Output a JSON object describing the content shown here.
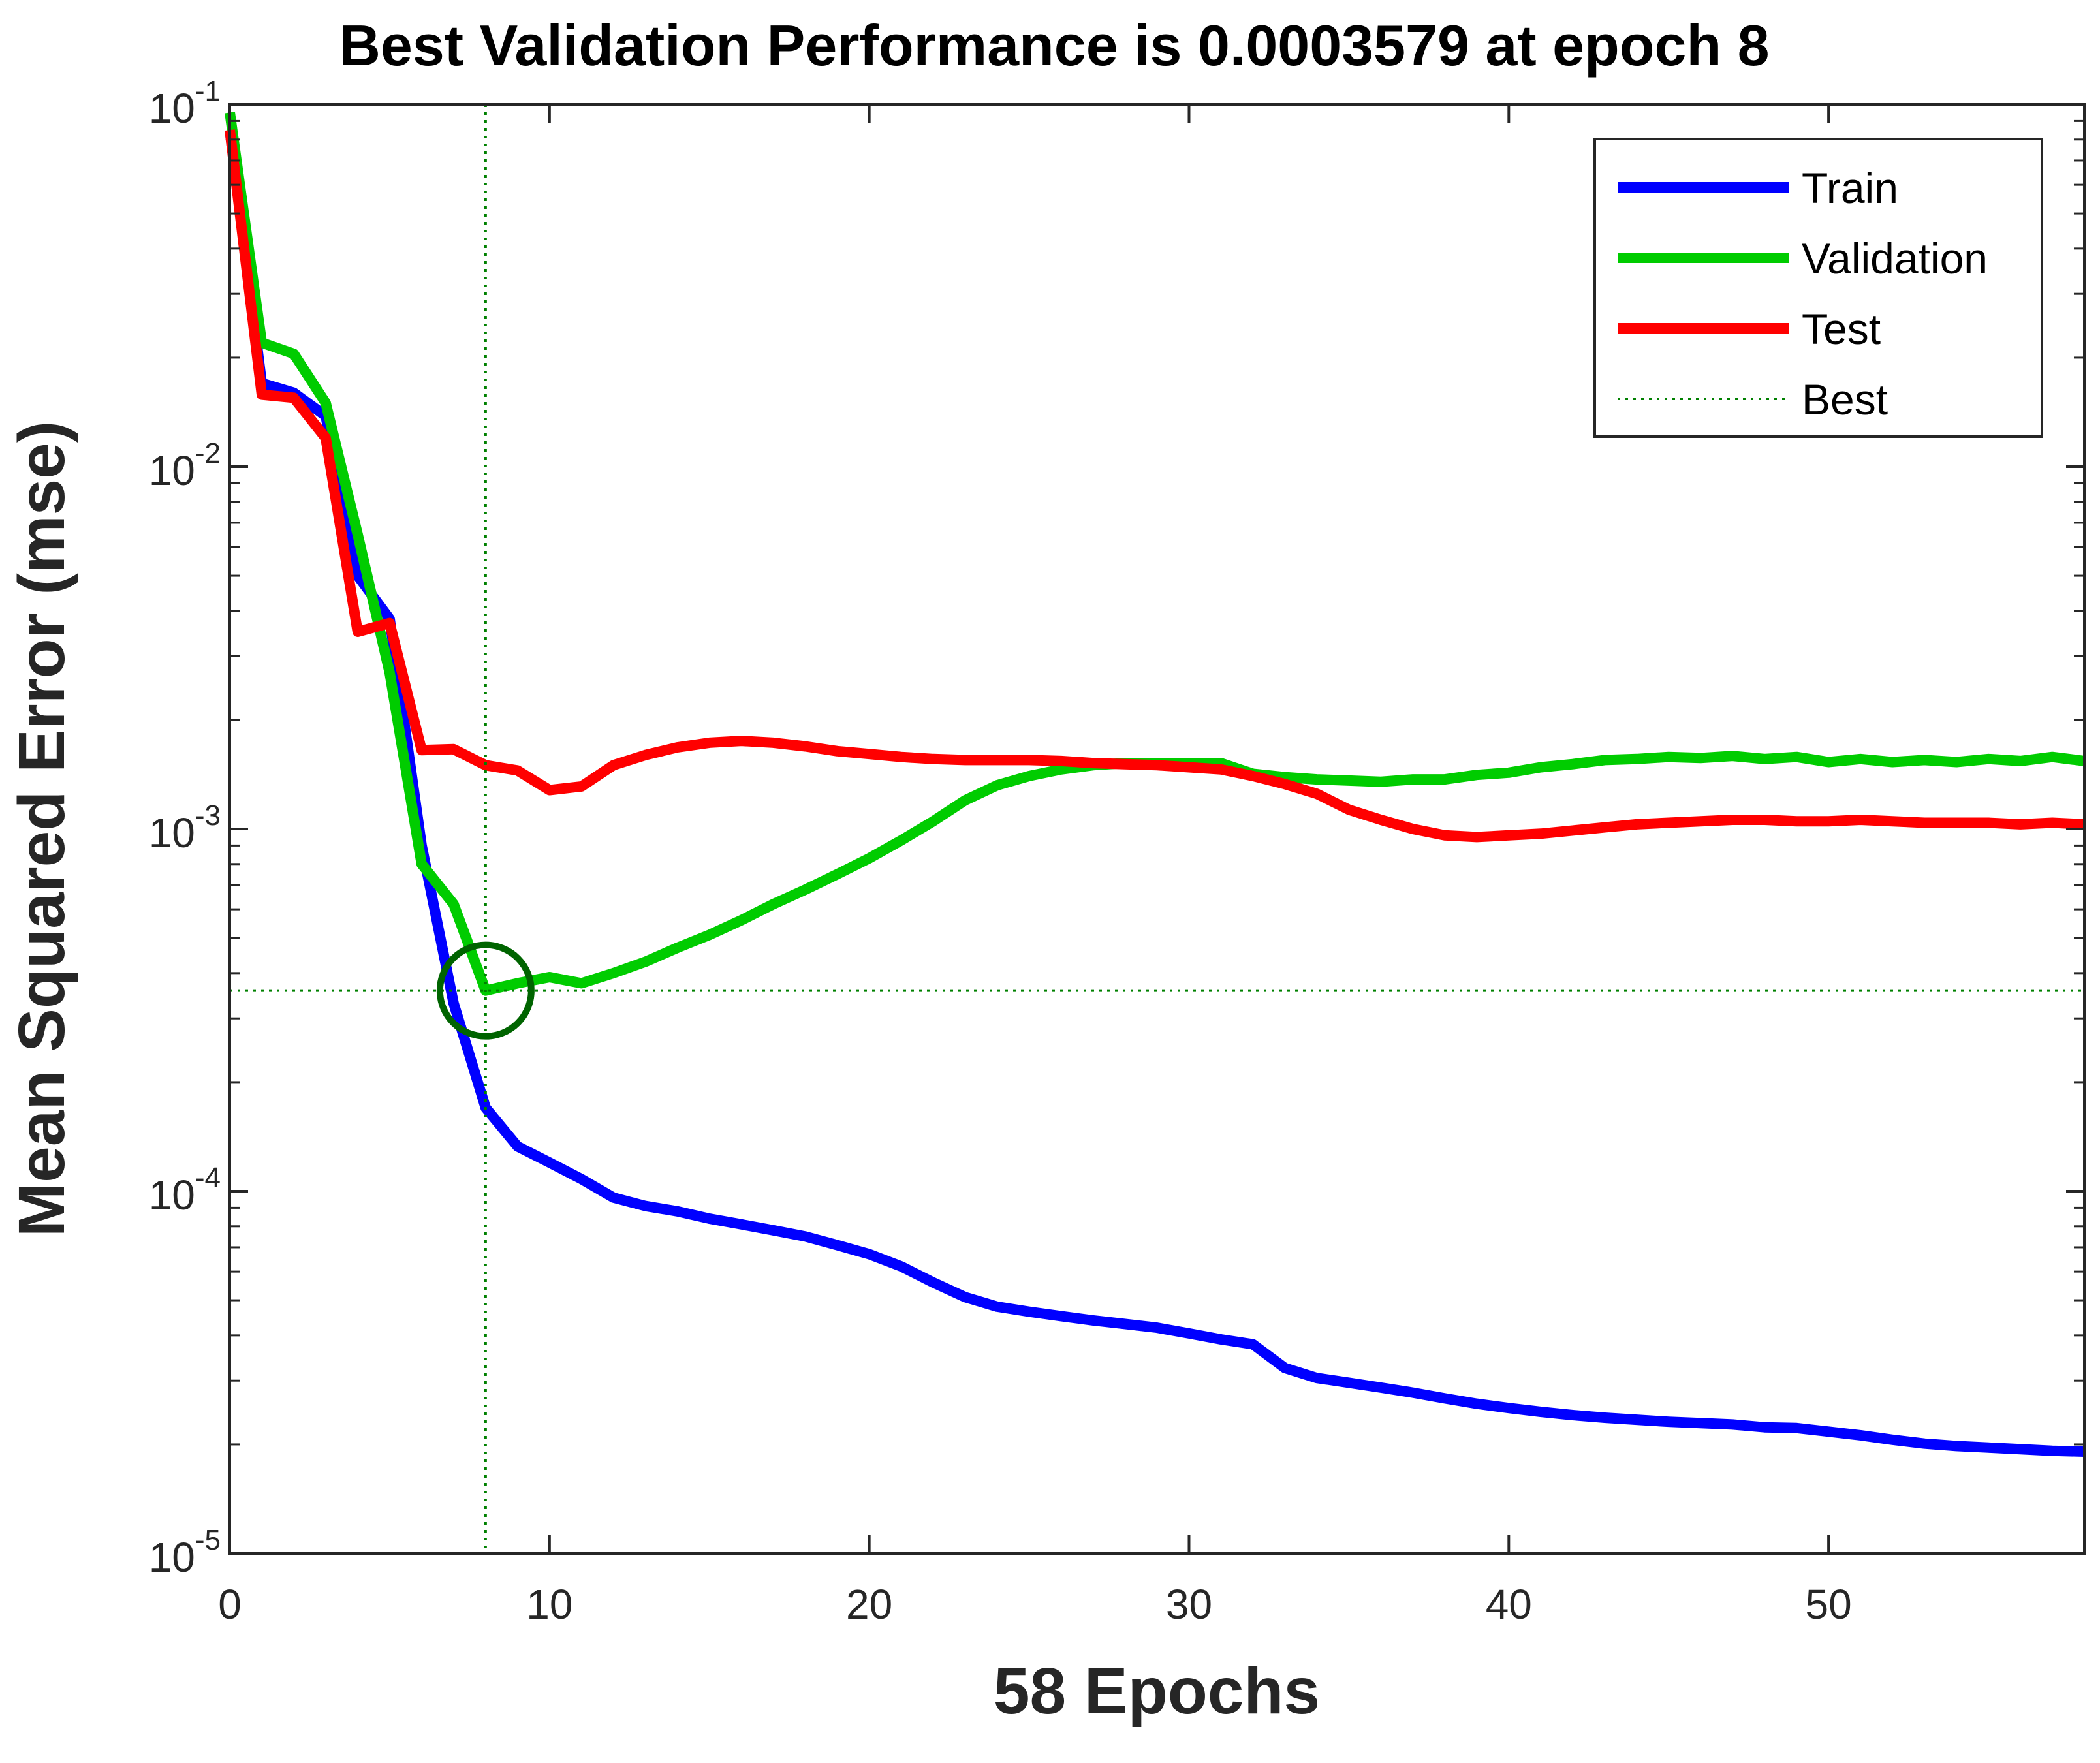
{
  "chart_data": {
    "type": "line",
    "title": "Best Validation Performance is 0.0003579 at epoch 8",
    "xlabel": "58 Epochs",
    "ylabel": "Mean Squared Error  (mse)",
    "xscale": "linear",
    "yscale": "log",
    "xlim": [
      0,
      58
    ],
    "ylim": [
      1e-05,
      0.1
    ],
    "xticks": [
      0,
      10,
      20,
      30,
      40,
      50
    ],
    "yticks": [
      {
        "value": 0.1,
        "base": "10",
        "exp": "-1"
      },
      {
        "value": 0.01,
        "base": "10",
        "exp": "-2"
      },
      {
        "value": 0.001,
        "base": "10",
        "exp": "-3"
      },
      {
        "value": 0.0001,
        "base": "10",
        "exp": "-4"
      },
      {
        "value": 1e-05,
        "base": "10",
        "exp": "-5"
      }
    ],
    "legend_position": "top-right",
    "best": {
      "epoch": 8,
      "value": 0.0003579,
      "label": "Best",
      "color": "#008000"
    },
    "series": [
      {
        "name": "Train",
        "color": "#0000ff",
        "x": [
          0,
          1,
          2,
          3,
          4,
          5,
          6,
          7,
          8,
          9,
          10,
          11,
          12,
          13,
          14,
          15,
          16,
          17,
          18,
          19,
          20,
          21,
          22,
          23,
          24,
          25,
          26,
          27,
          28,
          29,
          30,
          31,
          32,
          33,
          34,
          35,
          36,
          37,
          38,
          39,
          40,
          41,
          42,
          43,
          44,
          45,
          46,
          47,
          48,
          49,
          50,
          51,
          52,
          53,
          54,
          55,
          56,
          57,
          58
        ],
        "values": [
          0.085,
          0.017,
          0.016,
          0.0138,
          0.005,
          0.0038,
          0.0009,
          0.00033,
          0.00017,
          0.000133,
          0.00012,
          0.000108,
          9.6e-05,
          9.1e-05,
          8.8e-05,
          8.4e-05,
          8.1e-05,
          7.8e-05,
          7.5e-05,
          7.1e-05,
          6.7e-05,
          6.2e-05,
          5.6e-05,
          5.1e-05,
          4.8e-05,
          4.65e-05,
          4.52e-05,
          4.4e-05,
          4.3e-05,
          4.2e-05,
          4.05e-05,
          3.9e-05,
          3.78e-05,
          3.25e-05,
          3.05e-05,
          2.96e-05,
          2.87e-05,
          2.78e-05,
          2.68e-05,
          2.59e-05,
          2.52e-05,
          2.46e-05,
          2.41e-05,
          2.37e-05,
          2.34e-05,
          2.31e-05,
          2.29e-05,
          2.27e-05,
          2.23e-05,
          2.22e-05,
          2.17e-05,
          2.12e-05,
          2.06e-05,
          2.01e-05,
          1.98e-05,
          1.96e-05,
          1.94e-05,
          1.92e-05,
          1.91e-05
        ]
      },
      {
        "name": "Validation",
        "color": "#00cc00",
        "x": [
          0,
          1,
          2,
          3,
          4,
          5,
          6,
          7,
          8,
          9,
          10,
          11,
          12,
          13,
          14,
          15,
          16,
          17,
          18,
          19,
          20,
          21,
          22,
          23,
          24,
          25,
          26,
          27,
          28,
          29,
          30,
          31,
          32,
          33,
          34,
          35,
          36,
          37,
          38,
          39,
          40,
          41,
          42,
          43,
          44,
          45,
          46,
          47,
          48,
          49,
          50,
          51,
          52,
          53,
          54,
          55,
          56,
          57,
          58
        ],
        "values": [
          0.095,
          0.022,
          0.0205,
          0.015,
          0.0065,
          0.0027,
          0.0008,
          0.00062,
          0.0003579,
          0.000375,
          0.00039,
          0.000375,
          0.0004,
          0.00043,
          0.00047,
          0.00051,
          0.00056,
          0.00062,
          0.00068,
          0.00075,
          0.00083,
          0.00093,
          0.00105,
          0.0012,
          0.00132,
          0.0014,
          0.00146,
          0.0015,
          0.00152,
          0.00152,
          0.00152,
          0.00152,
          0.00142,
          0.00139,
          0.00137,
          0.00136,
          0.00135,
          0.00137,
          0.00137,
          0.00141,
          0.00143,
          0.00148,
          0.00151,
          0.00155,
          0.00156,
          0.00158,
          0.00157,
          0.00159,
          0.00156,
          0.00158,
          0.00153,
          0.00156,
          0.00153,
          0.00155,
          0.00153,
          0.00156,
          0.00154,
          0.00158,
          0.00154
        ]
      },
      {
        "name": "Test",
        "color": "#ff0000",
        "x": [
          0,
          1,
          2,
          3,
          4,
          5,
          6,
          7,
          8,
          9,
          10,
          11,
          12,
          13,
          14,
          15,
          16,
          17,
          18,
          19,
          20,
          21,
          22,
          23,
          24,
          25,
          26,
          27,
          28,
          29,
          30,
          31,
          32,
          33,
          34,
          35,
          36,
          37,
          38,
          39,
          40,
          41,
          42,
          43,
          44,
          45,
          46,
          47,
          48,
          49,
          50,
          51,
          52,
          53,
          54,
          55,
          56,
          57,
          58
        ],
        "values": [
          0.085,
          0.0158,
          0.0155,
          0.012,
          0.0035,
          0.0037,
          0.00165,
          0.00166,
          0.0015,
          0.00145,
          0.00128,
          0.00131,
          0.0015,
          0.0016,
          0.00168,
          0.00173,
          0.00175,
          0.00173,
          0.00169,
          0.00164,
          0.00161,
          0.00158,
          0.00156,
          0.00155,
          0.00155,
          0.00155,
          0.00154,
          0.00152,
          0.00151,
          0.0015,
          0.00148,
          0.00146,
          0.0014,
          0.00133,
          0.00125,
          0.00113,
          0.00106,
          0.001,
          0.00096,
          0.00095,
          0.00096,
          0.00097,
          0.00099,
          0.00101,
          0.00103,
          0.00104,
          0.00105,
          0.00106,
          0.00106,
          0.00105,
          0.00105,
          0.00106,
          0.00105,
          0.00104,
          0.00104,
          0.00104,
          0.00103,
          0.00104,
          0.00103
        ]
      }
    ]
  }
}
